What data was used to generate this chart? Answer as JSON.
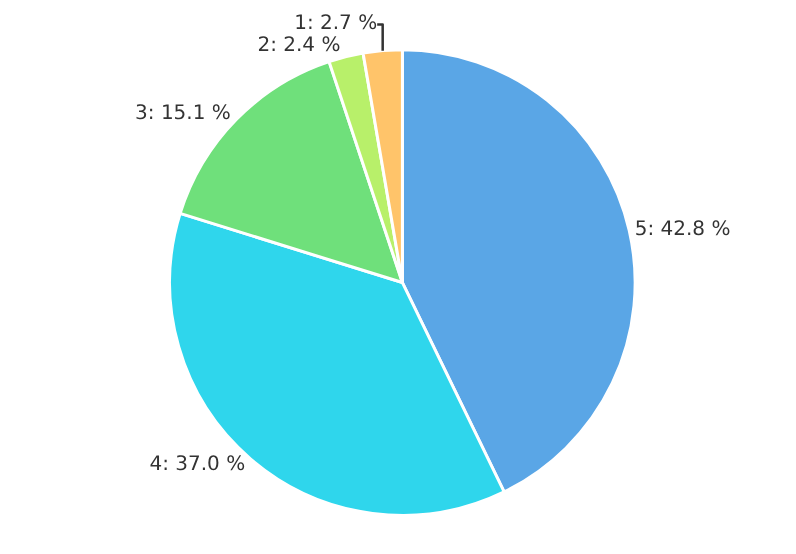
{
  "chart_data": {
    "type": "pie",
    "categories": [
      "5",
      "4",
      "3",
      "2",
      "1"
    ],
    "values": [
      42.8,
      37.0,
      15.1,
      2.4,
      2.7
    ],
    "colors": [
      "#5aa6e6",
      "#2fd6ec",
      "#6fe07b",
      "#b8f06a",
      "#ffc46a"
    ],
    "value_labels": [
      "42.8 %",
      "37.0 %",
      "15.1 %",
      "2.4 %",
      "2.7 %"
    ],
    "legend": false
  }
}
